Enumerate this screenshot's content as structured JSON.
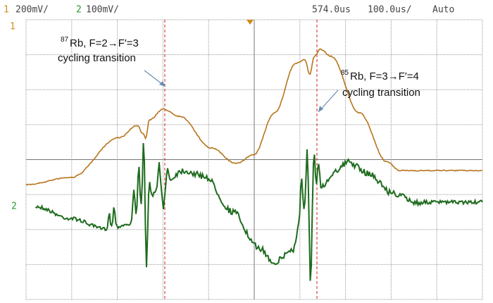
{
  "header": {
    "ch1_label": "1",
    "ch1_scale": "200mV/",
    "ch2_label": "2",
    "ch2_scale": "100mV/",
    "delay": "574.0us",
    "timebase": "100.0us/",
    "trigger_mode": "Auto"
  },
  "markers": {
    "ch1": "1",
    "ch2": "2"
  },
  "annotations": [
    {
      "isotope": "87",
      "line1": "Rb, F=2→F′=3",
      "line2": "cycling transition"
    },
    {
      "isotope": "85",
      "line1": "Rb, F=3→F′=4",
      "line2": "cycling transition"
    }
  ]
}
